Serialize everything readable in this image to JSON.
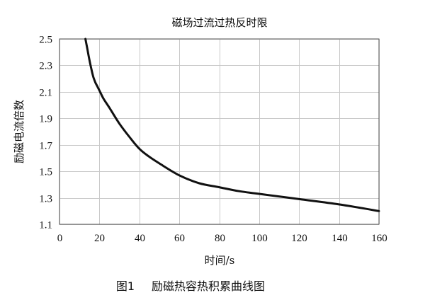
{
  "chart_data": {
    "type": "line",
    "title": "磁场过流过热反时限",
    "xlabel": "时间/s",
    "ylabel": "励磁电流倍数",
    "xlim": [
      0,
      160
    ],
    "ylim": [
      1.1,
      2.5
    ],
    "x_ticks": [
      "0",
      "20",
      "40",
      "60",
      "80",
      "100",
      "120",
      "140",
      "160"
    ],
    "y_ticks": [
      "1.1",
      "1.3",
      "1.5",
      "1.7",
      "1.9",
      "2.1",
      "2.3",
      "2.5"
    ],
    "grid": true,
    "series": [
      {
        "x": [
          13,
          14,
          15,
          16,
          17,
          18,
          19,
          20,
          22,
          25,
          30,
          35,
          40,
          45,
          50,
          60,
          70,
          80,
          90,
          100,
          120,
          140,
          160
        ],
        "y": [
          2.5,
          2.42,
          2.34,
          2.27,
          2.21,
          2.17,
          2.14,
          2.11,
          2.05,
          1.98,
          1.86,
          1.76,
          1.67,
          1.61,
          1.56,
          1.47,
          1.41,
          1.38,
          1.35,
          1.33,
          1.29,
          1.25,
          1.2
        ]
      }
    ]
  },
  "caption": {
    "figure_number": "图1",
    "text": "励磁热容热积累曲线图"
  }
}
